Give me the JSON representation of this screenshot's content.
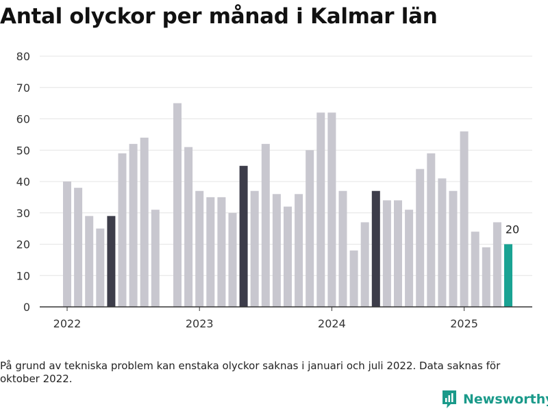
{
  "chart_data": {
    "type": "bar",
    "title": "Antal olyckor per månad i Kalmar län",
    "xlabel": "",
    "ylabel": "",
    "ylim": [
      0,
      80
    ],
    "yticks": [
      0,
      10,
      20,
      30,
      40,
      50,
      60,
      70,
      80
    ],
    "xtick_labels": [
      {
        "label": "2022",
        "date": "2022-01"
      },
      {
        "label": "2023",
        "date": "2023-01"
      },
      {
        "label": "2024",
        "date": "2024-01"
      },
      {
        "label": "2025",
        "date": "2025-01"
      }
    ],
    "grid": true,
    "colors": {
      "normal": "#c8c7cf",
      "highlight": "#3d3d4a",
      "latest": "#1aa393"
    },
    "categories": [
      "2022-01",
      "2022-02",
      "2022-03",
      "2022-04",
      "2022-05",
      "2022-06",
      "2022-07",
      "2022-08",
      "2022-09",
      "2022-10",
      "2022-11",
      "2022-12",
      "2023-01",
      "2023-02",
      "2023-03",
      "2023-04",
      "2023-05",
      "2023-06",
      "2023-07",
      "2023-08",
      "2023-09",
      "2023-10",
      "2023-11",
      "2023-12",
      "2024-01",
      "2024-02",
      "2024-03",
      "2024-04",
      "2024-05",
      "2024-06",
      "2024-07",
      "2024-08",
      "2024-09",
      "2024-10",
      "2024-11",
      "2024-12",
      "2025-01",
      "2025-02",
      "2025-03",
      "2025-04",
      "2025-05"
    ],
    "values": [
      40,
      38,
      29,
      25,
      29,
      49,
      52,
      54,
      31,
      null,
      65,
      51,
      37,
      35,
      35,
      30,
      45,
      37,
      52,
      36,
      32,
      36,
      50,
      62,
      62,
      37,
      18,
      27,
      37,
      34,
      34,
      31,
      44,
      49,
      41,
      37,
      56,
      24,
      19,
      27,
      20
    ],
    "highlight": [
      "2022-05",
      "2023-05",
      "2024-05"
    ],
    "latest": {
      "date": "2025-05",
      "label": "20"
    }
  },
  "note": "På grund av tekniska problem kan enstaka olyckor saknas i januari och juli 2022. Data saknas för oktober 2022.",
  "brand": {
    "name": "Newsworthy",
    "icon": "bar-chart-logo-icon"
  }
}
